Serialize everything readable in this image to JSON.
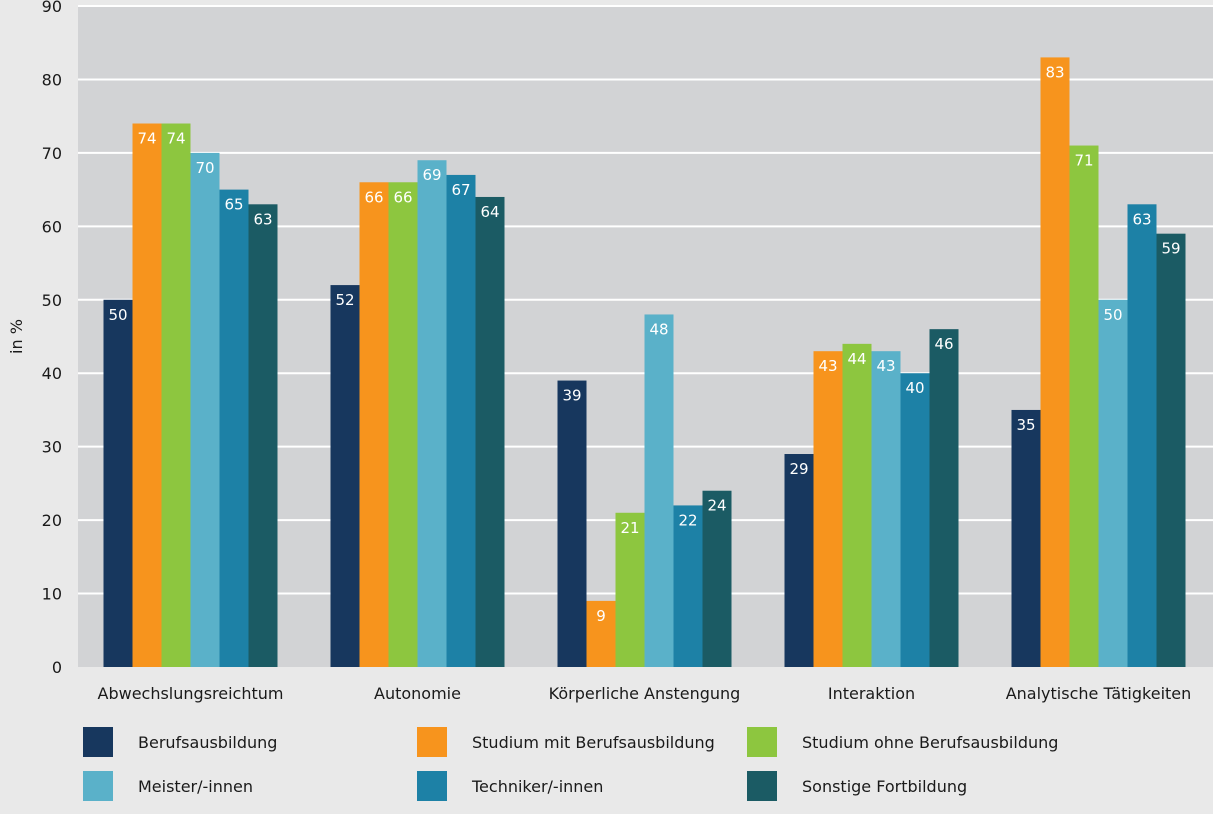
{
  "chart_data": {
    "type": "bar",
    "ylabel": "in %",
    "ylim": [
      0,
      90
    ],
    "yticks": [
      0,
      10,
      20,
      30,
      40,
      50,
      60,
      70,
      80,
      90
    ],
    "grid": true,
    "legend_position": "bottom",
    "categories": [
      "Abwechslungsreichtum",
      "Autonomie",
      "Körperliche Anstengung",
      "Interaktion",
      "Analytische Tätigkeiten"
    ],
    "series": [
      {
        "name": "Berufsausbildung",
        "color": "#17375e",
        "values": [
          50,
          52,
          39,
          29,
          35
        ]
      },
      {
        "name": "Studium mit Berufsausbildung",
        "color": "#f7941d",
        "values": [
          74,
          66,
          9,
          43,
          83
        ]
      },
      {
        "name": "Studium ohne Berufsausbildung",
        "color": "#8dc63f",
        "values": [
          74,
          66,
          21,
          44,
          71
        ]
      },
      {
        "name": "Meister/-innen",
        "color": "#5ab1c9",
        "values": [
          70,
          69,
          48,
          43,
          50
        ]
      },
      {
        "name": "Techniker/-innen",
        "color": "#1d81a6",
        "values": [
          65,
          67,
          22,
          40,
          63
        ]
      },
      {
        "name": "Sonstige Fortbildung",
        "color": "#1b5b64",
        "values": [
          63,
          64,
          24,
          46,
          59
        ]
      }
    ]
  },
  "colors": {
    "background": "#e9e9e9",
    "plot_area": "#d2d3d5",
    "gridline": "#ffffff",
    "value_label": "#ffffff"
  }
}
